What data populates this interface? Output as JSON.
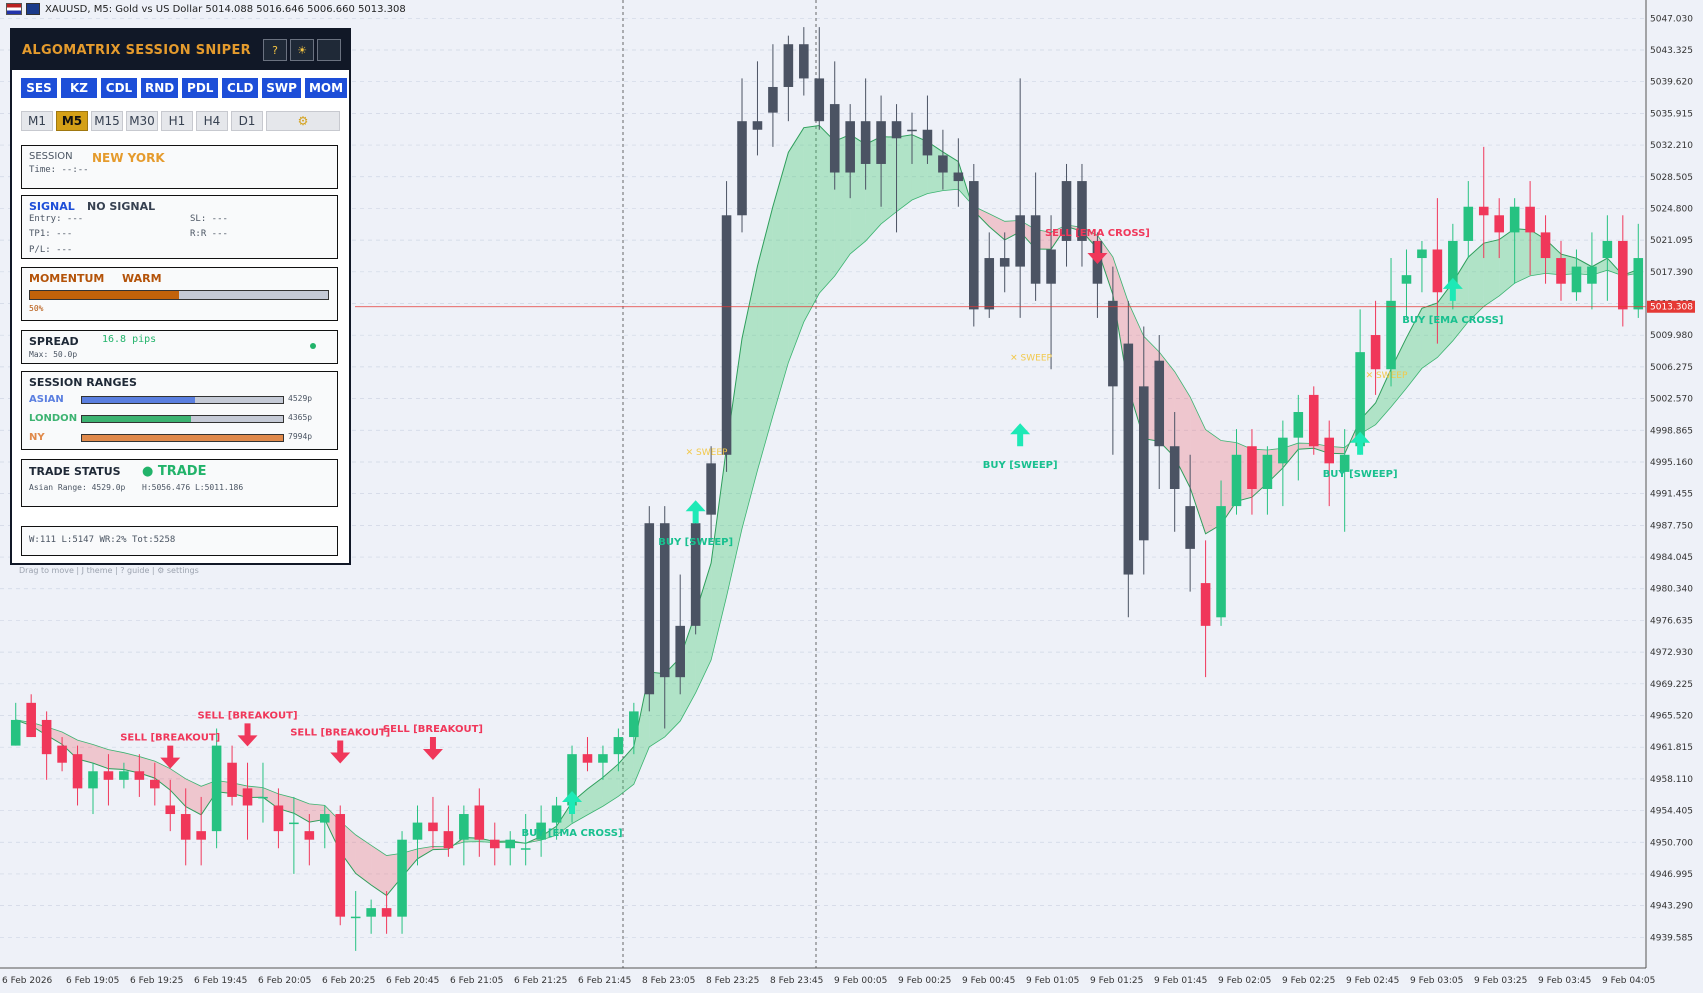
{
  "window": {
    "title": "XAUUSD, M5:  Gold vs US Dollar  5014.088 5016.646 5006.660 5013.308"
  },
  "panel": {
    "title": "ALGOMATRIX SESSION SNIPER",
    "header_buttons": [
      "?",
      "☀",
      ""
    ],
    "tabs": [
      "SES",
      "KZ",
      "CDL",
      "RND",
      "PDL",
      "CLD",
      "SWP",
      "MOM"
    ],
    "timeframes": [
      "M1",
      "M5",
      "M15",
      "M30",
      "H1",
      "H4",
      "D1",
      "⚙"
    ],
    "active_timeframe": "M5",
    "session": {
      "label": "SESSION",
      "value": "NEW YORK",
      "time": "Time: --:--"
    },
    "signal": {
      "label": "SIGNAL",
      "value": "NO SIGNAL",
      "entry": "Entry: ---",
      "sl": "SL: ---",
      "tp1": "TP1: ---",
      "rr": "R:R ---",
      "pl": "P/L: ---"
    },
    "momentum": {
      "label": "MOMENTUM",
      "value": "WARM",
      "percent_text": "50%",
      "percent": 0.5
    },
    "spread": {
      "label": "SPREAD",
      "value": "16.8 pips",
      "max": "Max: 50.0p"
    },
    "session_ranges": {
      "label": "SESSION RANGES",
      "rows": [
        {
          "name": "ASIAN",
          "pips": "4529p",
          "fill": 0.56,
          "color": "#5b7fe0"
        },
        {
          "name": "LONDON",
          "pips": "4365p",
          "fill": 0.54,
          "color": "#3cb371"
        },
        {
          "name": "NY",
          "pips": "7994p",
          "fill": 1.0,
          "color": "#e0894a"
        }
      ]
    },
    "trade_status": {
      "label": "TRADE STATUS",
      "value": "● TRADE",
      "detail_range": "Asian Range: 4529.0p",
      "detail_hl": "H:5056.476 L:5011.186"
    },
    "stats": "W:111 L:5147 WR:2% Tot:5258",
    "footnote": "Drag to move | J theme | ? guide | ⚙ settings"
  },
  "colors": {
    "bull": "#26c281",
    "bear": "#f0375a",
    "neutral": "#4b5363",
    "accent": "#1d4ed8"
  },
  "chart_data": {
    "type": "candlestick",
    "symbol": "XAUUSD",
    "timeframe": "M5",
    "current_price": "5013.308",
    "ylim": [
      4936,
      5048
    ],
    "y_ticks": [
      "5047.030",
      "5043.325",
      "5039.620",
      "5035.915",
      "5032.210",
      "5028.505",
      "5024.800",
      "5021.095",
      "5017.390",
      "5013.685",
      "5009.980",
      "5006.275",
      "5002.570",
      "4998.865",
      "4995.160",
      "4991.455",
      "4987.750",
      "4984.045",
      "4980.340",
      "4976.635",
      "4972.930",
      "4969.225",
      "4965.520",
      "4961.815",
      "4958.110",
      "4954.405",
      "4950.700",
      "4946.995",
      "4943.290",
      "4939.585"
    ],
    "x_ticks": [
      "6 Feb 2026",
      "6 Feb 19:05",
      "6 Feb 19:25",
      "6 Feb 19:45",
      "6 Feb 20:05",
      "6 Feb 20:25",
      "6 Feb 20:45",
      "6 Feb 21:05",
      "6 Feb 21:25",
      "6 Feb 21:45",
      "8 Feb 23:05",
      "8 Feb 23:25",
      "8 Feb 23:45",
      "9 Feb 00:05",
      "9 Feb 00:25",
      "9 Feb 00:45",
      "9 Feb 01:05",
      "9 Feb 01:25",
      "9 Feb 01:45",
      "9 Feb 02:05",
      "9 Feb 02:25",
      "9 Feb 02:45",
      "9 Feb 03:05",
      "9 Feb 03:25",
      "9 Feb 03:45",
      "9 Feb 04:05"
    ],
    "candles": [
      [
        4962,
        4967,
        4962,
        4965,
        "bull"
      ],
      [
        4967,
        4968,
        4963,
        4963,
        "bear"
      ],
      [
        4965,
        4966,
        4958,
        4961,
        "bear"
      ],
      [
        4962,
        4963,
        4959,
        4960,
        "bear"
      ],
      [
        4961,
        4962,
        4955,
        4957,
        "bear"
      ],
      [
        4957,
        4960,
        4954,
        4959,
        "bull"
      ],
      [
        4959,
        4961,
        4955,
        4958,
        "bear"
      ],
      [
        4958,
        4960,
        4957,
        4959,
        "bull"
      ],
      [
        4959,
        4961,
        4956,
        4958,
        "bear"
      ],
      [
        4958,
        4960,
        4955,
        4957,
        "bear"
      ],
      [
        4955,
        4958,
        4952,
        4954,
        "bear"
      ],
      [
        4954,
        4957,
        4948,
        4951,
        "bear"
      ],
      [
        4951,
        4956,
        4948,
        4952,
        "bear"
      ],
      [
        4952,
        4964,
        4950,
        4962,
        "bull"
      ],
      [
        4960,
        4962,
        4955,
        4956,
        "bear"
      ],
      [
        4957,
        4960,
        4951,
        4955,
        "bear"
      ],
      [
        4956,
        4960,
        4953,
        4956,
        "bull"
      ],
      [
        4955,
        4957,
        4950,
        4952,
        "bear"
      ],
      [
        4953,
        4956,
        4947,
        4953,
        "bull"
      ],
      [
        4952,
        4954,
        4948,
        4951,
        "bear"
      ],
      [
        4953,
        4955,
        4950,
        4954,
        "bull"
      ],
      [
        4954,
        4955,
        4941,
        4942,
        "bear"
      ],
      [
        4942,
        4945,
        4938,
        4942,
        "bull"
      ],
      [
        4942,
        4944,
        4940,
        4943,
        "bull"
      ],
      [
        4943,
        4945,
        4940,
        4942,
        "bear"
      ],
      [
        4942,
        4952,
        4940,
        4951,
        "bull"
      ],
      [
        4951,
        4955,
        4948,
        4953,
        "bull"
      ],
      [
        4953,
        4956,
        4950,
        4952,
        "bear"
      ],
      [
        4952,
        4955,
        4949,
        4950,
        "bear"
      ],
      [
        4951,
        4955,
        4948,
        4954,
        "bull"
      ],
      [
        4955,
        4957,
        4949,
        4951,
        "bear"
      ],
      [
        4951,
        4953,
        4948,
        4950,
        "bear"
      ],
      [
        4950,
        4952,
        4948,
        4951,
        "bull"
      ],
      [
        4950,
        4954,
        4948,
        4950,
        "bull"
      ],
      [
        4951,
        4955,
        4949,
        4953,
        "bull"
      ],
      [
        4953,
        4956,
        4951,
        4955,
        "bull"
      ],
      [
        4955,
        4962,
        4953,
        4961,
        "bull"
      ],
      [
        4961,
        4963,
        4959,
        4960,
        "bear"
      ],
      [
        4960,
        4962,
        4958,
        4961,
        "bull"
      ],
      [
        4961,
        4964,
        4959,
        4963,
        "bull"
      ],
      [
        4963,
        4967,
        4961,
        4966,
        "bull"
      ],
      [
        4968,
        4990,
        4966,
        4988,
        "neutral"
      ],
      [
        4988,
        4990,
        4964,
        4970,
        "neutral"
      ],
      [
        4970,
        4982,
        4968,
        4976,
        "neutral"
      ],
      [
        4976,
        4990,
        4975,
        4988,
        "neutral"
      ],
      [
        4989,
        4997,
        4986,
        4995,
        "neutral"
      ],
      [
        4996,
        5028,
        4994,
        5024,
        "neutral"
      ],
      [
        5024,
        5040,
        5022,
        5035,
        "neutral"
      ],
      [
        5034,
        5042,
        5031,
        5035,
        "neutral"
      ],
      [
        5036,
        5044,
        5032,
        5039,
        "neutral"
      ],
      [
        5039,
        5045,
        5035,
        5044,
        "neutral"
      ],
      [
        5044,
        5046,
        5038,
        5040,
        "neutral"
      ],
      [
        5040,
        5046,
        5034,
        5035,
        "neutral"
      ],
      [
        5037,
        5042,
        5027,
        5029,
        "neutral"
      ],
      [
        5029,
        5037,
        5026,
        5035,
        "neutral"
      ],
      [
        5035,
        5040,
        5027,
        5030,
        "neutral"
      ],
      [
        5030,
        5038,
        5025,
        5035,
        "neutral"
      ],
      [
        5035,
        5037,
        5022,
        5033,
        "neutral"
      ],
      [
        5034,
        5036,
        5030,
        5034,
        "neutral"
      ],
      [
        5034,
        5038,
        5030,
        5031,
        "neutral"
      ],
      [
        5031,
        5034,
        5027,
        5029,
        "neutral"
      ],
      [
        5029,
        5033,
        5025,
        5028,
        "neutral"
      ],
      [
        5028,
        5030,
        5011,
        5013,
        "neutral"
      ],
      [
        5013,
        5022,
        5012,
        5019,
        "neutral"
      ],
      [
        5019,
        5022,
        5015,
        5018,
        "neutral"
      ],
      [
        5018,
        5040,
        5012,
        5024,
        "neutral"
      ],
      [
        5024,
        5029,
        5014,
        5016,
        "neutral"
      ],
      [
        5016,
        5024,
        5006,
        5020,
        "neutral"
      ],
      [
        5021,
        5030,
        5018,
        5028,
        "neutral"
      ],
      [
        5028,
        5030,
        5018,
        5021,
        "neutral"
      ],
      [
        5021,
        5022,
        5012,
        5016,
        "neutral"
      ],
      [
        5014,
        5018,
        4996,
        5004,
        "neutral"
      ],
      [
        5009,
        5014,
        4977,
        4982,
        "neutral"
      ],
      [
        5004,
        5011,
        4982,
        4986,
        "neutral"
      ],
      [
        5007,
        5010,
        4992,
        4997,
        "neutral"
      ],
      [
        4997,
        5001,
        4987,
        4992,
        "neutral"
      ],
      [
        4990,
        4996,
        4980,
        4985,
        "neutral"
      ],
      [
        4981,
        4986,
        4970,
        4976,
        "bear"
      ],
      [
        4977,
        4993,
        4976,
        4990,
        "bull"
      ],
      [
        4990,
        4999,
        4989,
        4996,
        "bull"
      ],
      [
        4997,
        4999,
        4989,
        4992,
        "bear"
      ],
      [
        4992,
        4997,
        4989,
        4996,
        "bull"
      ],
      [
        4995,
        5000,
        4990,
        4998,
        "bull"
      ],
      [
        4998,
        5003,
        4993,
        5001,
        "bull"
      ],
      [
        5003,
        5004,
        4996,
        4997,
        "bear"
      ],
      [
        4998,
        5000,
        4990,
        4995,
        "bear"
      ],
      [
        4994,
        4999,
        4987,
        4996,
        "bull"
      ],
      [
        4997,
        5013,
        4996,
        5008,
        "bull"
      ],
      [
        5010,
        5014,
        5003,
        5006,
        "bear"
      ],
      [
        5006,
        5019,
        5004,
        5014,
        "bull"
      ],
      [
        5016,
        5020,
        5012,
        5017,
        "bull"
      ],
      [
        5019,
        5021,
        5015,
        5020,
        "bull"
      ],
      [
        5020,
        5026,
        5009,
        5015,
        "bear"
      ],
      [
        5016,
        5023,
        5013,
        5021,
        "bull"
      ],
      [
        5021,
        5028,
        5019,
        5025,
        "bull"
      ],
      [
        5025,
        5032,
        5019,
        5024,
        "bear"
      ],
      [
        5024,
        5026,
        5019,
        5022,
        "bear"
      ],
      [
        5022,
        5026,
        5016,
        5025,
        "bull"
      ],
      [
        5025,
        5028,
        5017,
        5022,
        "bear"
      ],
      [
        5022,
        5024,
        5016,
        5019,
        "bear"
      ],
      [
        5019,
        5021,
        5014,
        5016,
        "bear"
      ],
      [
        5015,
        5020,
        5014,
        5018,
        "bull"
      ],
      [
        5018,
        5022,
        5013,
        5016,
        "bull"
      ],
      [
        5019,
        5024,
        5014,
        5021,
        "bull"
      ],
      [
        5021,
        5024,
        5011,
        5013,
        "bear"
      ],
      [
        5013,
        5023,
        5012,
        5019,
        "bull"
      ]
    ],
    "annotations": [
      {
        "text": "SELL [BREAKOUT]",
        "type": "sell",
        "i": 10,
        "y": 4962
      },
      {
        "text": "SELL [BREAKOUT]",
        "type": "sell",
        "i": 15,
        "y": 4964.6
      },
      {
        "text": "SELL [BREAKOUT]",
        "type": "sell",
        "i": 21,
        "y": 4962.6
      },
      {
        "text": "SELL [BREAKOUT]",
        "type": "sell",
        "i": 27,
        "y": 4963
      },
      {
        "text": "BUY [EMA CROSS]",
        "type": "buy",
        "i": 36,
        "y": 4954
      },
      {
        "text": "BUY [SWEEP]",
        "type": "buy",
        "i": 44,
        "y": 4988
      },
      {
        "text": "BUY [SWEEP]",
        "type": "buy",
        "i": 65,
        "y": 4997
      },
      {
        "text": "SELL [EMA CROSS]",
        "type": "sell",
        "i": 70,
        "y": 5021
      },
      {
        "text": "BUY [SWEEP]",
        "type": "buy",
        "i": 87,
        "y": 4996
      },
      {
        "text": "BUY [EMA CROSS]",
        "type": "buy",
        "i": 93,
        "y": 5014
      }
    ],
    "sweep_labels": [
      {
        "text": "✕ SWEEP",
        "i": 44,
        "y": 4996
      },
      {
        "text": "✕ SWEEP",
        "i": 65,
        "y": 5007
      },
      {
        "text": "✕ SWEEP",
        "i": 88,
        "y": 5005
      }
    ]
  }
}
